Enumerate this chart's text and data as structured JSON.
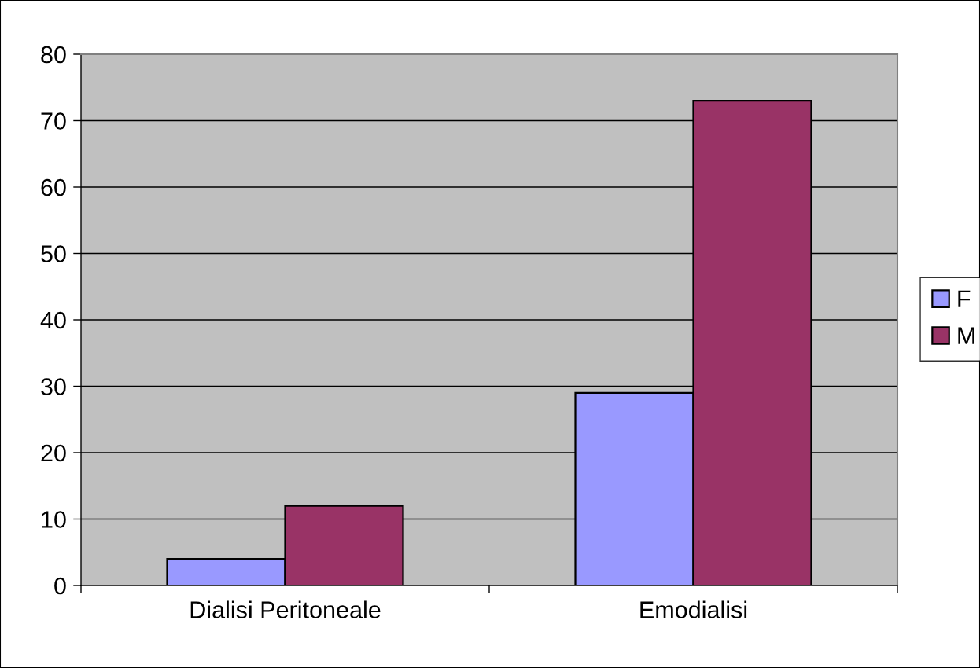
{
  "chart_data": {
    "type": "bar",
    "categories": [
      "Dialisi Peritoneale",
      "Emodialisi"
    ],
    "series": [
      {
        "name": "F",
        "color": "#9999ff",
        "values": [
          4,
          29
        ]
      },
      {
        "name": "M",
        "color": "#993366",
        "values": [
          12,
          73
        ]
      }
    ],
    "ylim": [
      0,
      80
    ],
    "yticks": [
      0,
      10,
      20,
      30,
      40,
      50,
      60,
      70,
      80
    ],
    "grid": "y",
    "legend": "right"
  }
}
